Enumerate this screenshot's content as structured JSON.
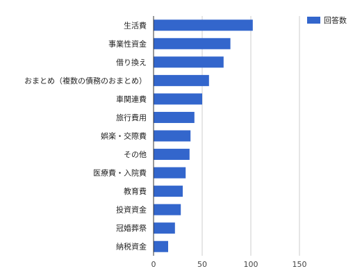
{
  "chart_data": {
    "type": "bar",
    "orientation": "horizontal",
    "title": "",
    "xlabel": "",
    "ylabel": "",
    "categories": [
      "生活費",
      "事業性資金",
      "借り換え",
      "おまとめ（複数の債務のおまとめ）",
      "車関連費",
      "旅行費用",
      "娯楽・交際費",
      "その他",
      "医療費・入院費",
      "教育費",
      "投資資金",
      "冠婚葬祭",
      "納税資金"
    ],
    "series": [
      {
        "name": "回答数",
        "color": "#3366cc",
        "values": [
          102,
          79,
          72,
          57,
          50,
          42,
          38,
          37,
          33,
          30,
          28,
          22,
          15
        ]
      }
    ],
    "xlim": [
      0,
      150
    ],
    "xticks": [
      0,
      50,
      100,
      150
    ],
    "grid": true,
    "legend_position": "top-right"
  }
}
